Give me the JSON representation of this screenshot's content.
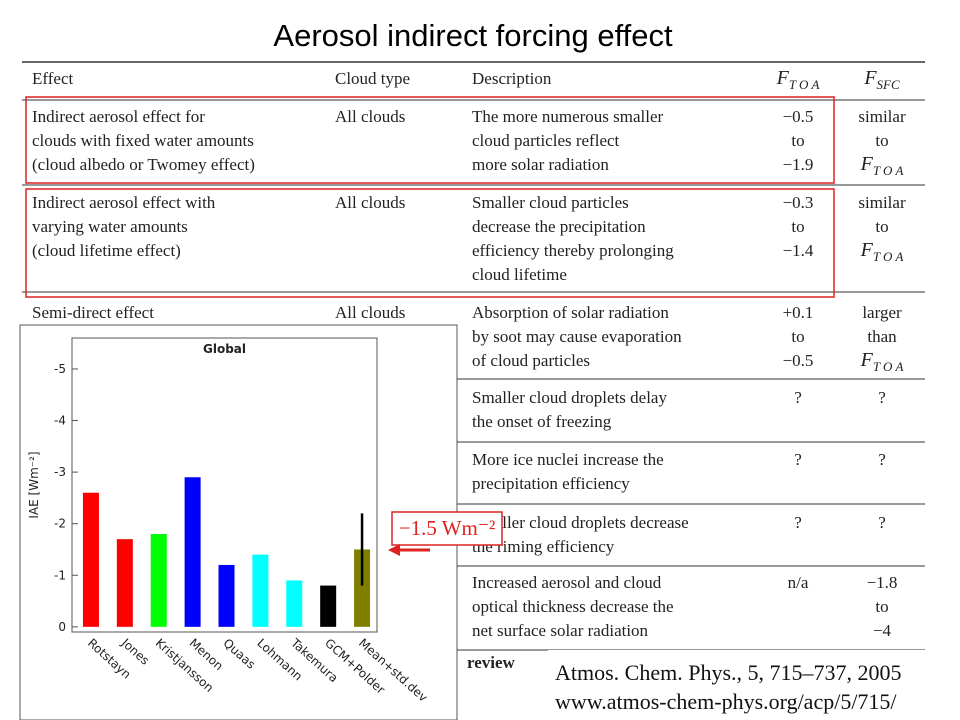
{
  "title": "Aerosol indirect forcing effect",
  "table": {
    "header": [
      "Effect",
      "Cloud type",
      "Description",
      {
        "main": "F",
        "sub": "T O A"
      },
      {
        "main": "F",
        "sub": "SFC"
      }
    ],
    "rows": [
      {
        "effect": [
          "Indirect aerosol effect for",
          "clouds with fixed water amounts",
          "(cloud albedo or Twomey effect)"
        ],
        "cloud": [
          "All clouds"
        ],
        "desc": [
          "The more numerous smaller",
          "cloud particles reflect",
          "more solar radiation"
        ],
        "ftoa": [
          "−0.5",
          "to",
          "−1.9"
        ],
        "fsfc": [
          "similar",
          "to",
          {
            "main": "F",
            "sub": "T O A"
          }
        ]
      },
      {
        "effect": [
          "Indirect aerosol effect with",
          "varying water amounts",
          "(cloud lifetime effect)"
        ],
        "cloud": [
          "All clouds"
        ],
        "desc": [
          "Smaller cloud particles",
          "decrease the precipitation",
          "efficiency thereby prolonging",
          "cloud lifetime"
        ],
        "ftoa": [
          "−0.3",
          "to",
          "−1.4"
        ],
        "fsfc": [
          "similar",
          "to",
          {
            "main": "F",
            "sub": "T O A"
          }
        ]
      },
      {
        "effect": [
          "Semi-direct effect"
        ],
        "cloud": [
          "All clouds"
        ],
        "desc": [
          "Absorption of solar radiation",
          "by soot may cause evaporation",
          "of cloud particles"
        ],
        "ftoa": [
          "+0.1",
          "to",
          "−0.5"
        ],
        "fsfc": [
          "larger",
          "than",
          {
            "main": "F",
            "sub": "T O A"
          }
        ]
      },
      {
        "effect": [],
        "cloud": [],
        "desc": [
          "Smaller cloud droplets delay",
          "the onset of freezing"
        ],
        "ftoa": [
          "?"
        ],
        "fsfc": [
          "?"
        ]
      },
      {
        "effect": [],
        "cloud": [],
        "desc": [
          "More ice nuclei increase the",
          "precipitation efficiency"
        ],
        "ftoa": [
          "?"
        ],
        "fsfc": [
          "?"
        ]
      },
      {
        "effect": [],
        "cloud": [],
        "desc": [
          "Smaller cloud droplets decrease",
          "the riming efficiency"
        ],
        "ftoa": [
          "?"
        ],
        "fsfc": [
          "?"
        ]
      },
      {
        "effect": [],
        "cloud": [],
        "desc": [
          "Increased aerosol and cloud",
          "optical thickness decrease the",
          "net surface solar radiation"
        ],
        "ftoa": [
          "n/a"
        ],
        "fsfc": [
          "−1.8",
          "to",
          "−4"
        ]
      }
    ]
  },
  "chart_data": {
    "type": "bar",
    "title": "Global",
    "y_label": "IAE [Wm⁻²]",
    "categories": [
      "Rotstayn",
      "Jones",
      "Kristjansson",
      "Menon",
      "Quaas",
      "Lohmann",
      "Takemura",
      "GCM+Polder",
      "Mean+std.dev"
    ],
    "values": [
      -2.6,
      -1.7,
      -1.8,
      -2.9,
      -1.2,
      -1.4,
      -0.9,
      -0.8,
      -1.5
    ],
    "errors": [
      null,
      null,
      null,
      null,
      null,
      null,
      null,
      null,
      0.7
    ],
    "colors": [
      "#ff0000",
      "#ff0000",
      "#00ff00",
      "#0000ff",
      "#0000ff",
      "#00ffff",
      "#00ffff",
      "#000000",
      "#808000"
    ],
    "ylim": [
      0.1,
      -5.6
    ],
    "yticks": [
      0,
      -1,
      -2,
      -3,
      -4,
      -5
    ]
  },
  "annotation": "−1.5 Wm⁻²",
  "partial_text": "review",
  "citation": [
    "Atmos. Chem. Phys., 5, 715–737, 2005",
    "www.atmos-chem-phys.org/acp/5/715/"
  ]
}
